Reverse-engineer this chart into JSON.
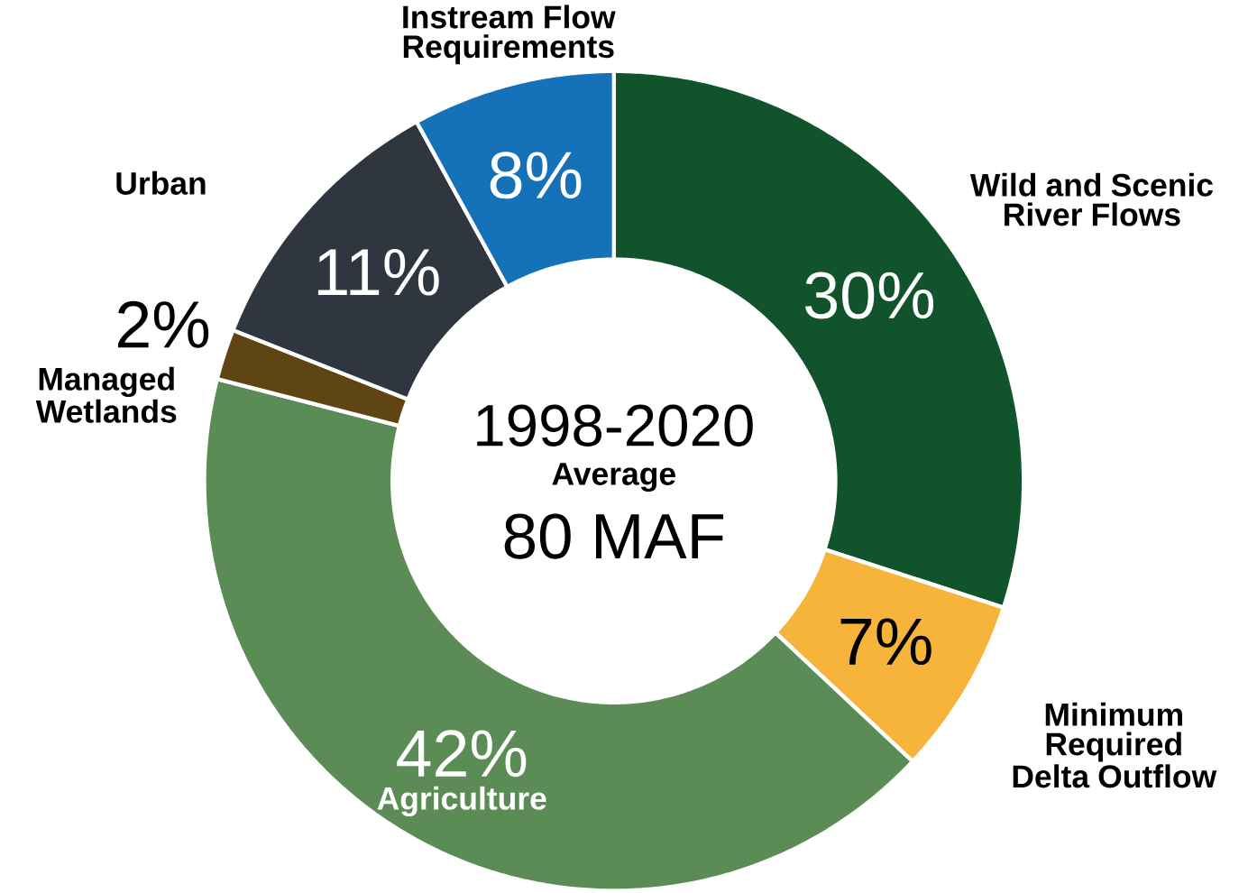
{
  "chart_data": {
    "type": "donut",
    "categories": [
      "Wild and Scenic River Flows",
      "Minimum Required Delta Outflow",
      "Agriculture",
      "Managed Wetlands",
      "Urban",
      "Instream Flow Requirements"
    ],
    "values": [
      30,
      7,
      42,
      2,
      11,
      8
    ],
    "colors": [
      "#11532a",
      "#f6b53a",
      "#5c8c55",
      "#5e4513",
      "#2f3640",
      "#1572b8"
    ],
    "value_labels": [
      "30%",
      "7%",
      "42%",
      "2%",
      "11%",
      "8%"
    ],
    "annotations": [
      "1998-2020",
      "Average",
      "80 MAF"
    ]
  }
}
